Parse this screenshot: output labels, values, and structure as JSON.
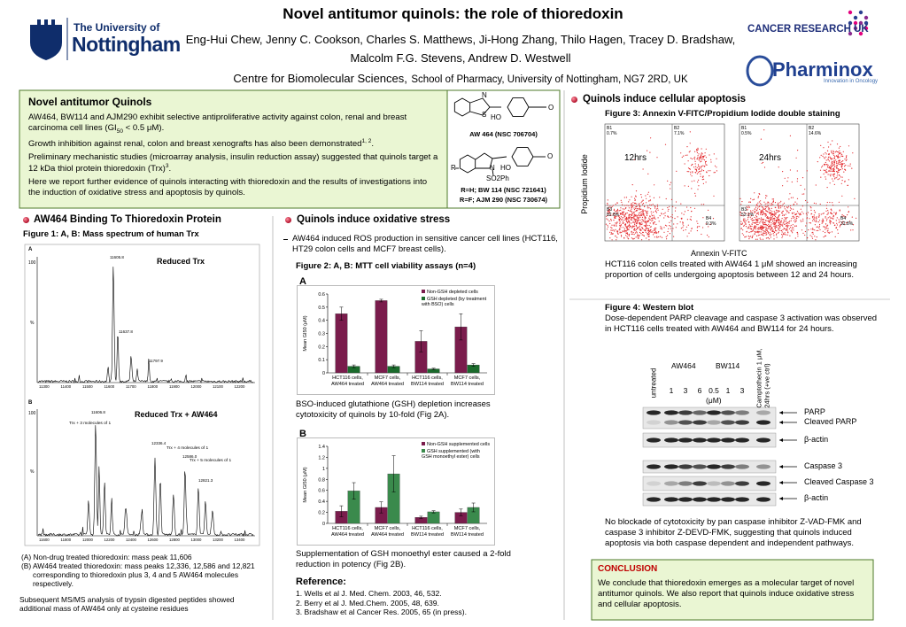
{
  "header": {
    "title": "Novel antitumor quinols: the role of thioredoxin",
    "authors": [
      "Eng-Hui Chew, Jenny C. Cookson, Charles S. Matthews, Ji-Hong Zhang, Thilo Hagen, Tracey D. Bradshaw,",
      "Malcolm F.G. Stevens, Andrew D. Westwell"
    ],
    "affiliation_main": "Centre for Biomolecular Sciences,",
    "affiliation_rest": "School of Pharmacy, University of Nottingham, NG7 2RD, UK"
  },
  "logos": {
    "university_prefix": "The University of",
    "university_name": "Nottingham",
    "cancer_research": "CANCER RESEARCH UK",
    "pharminox": "Pharminox",
    "pharminox_tagline": "Innovation in Oncology"
  },
  "intro": {
    "heading": "Novel antitumor Quinols",
    "p1": [
      "AW464, BW114 and AJM290 exhibit selective antiproliferative activity against colon, renal and breast carcinoma cell lines (GI",
      "50",
      " < 0.5 μM)."
    ],
    "p2": [
      "Growth inhibition against renal, colon and breast xenografts has also been demonstrated",
      "1, 2",
      "."
    ],
    "p3": [
      "Preliminary mechanistic studies (microarray analysis, insulin reduction assay) suggested that quinols target a 12 kDa thiol protein thioredoxin (Trx)",
      "3",
      "."
    ],
    "p4": "Here we report further evidence of quinols interacting with thioredoxin and the results of investigations into the induction of oxidative stress and apoptosis by quinols."
  },
  "structures": {
    "atoms_top": [
      "N",
      "S",
      "HO",
      "O"
    ],
    "name_top": "AW 464 (NSC 706704)",
    "atoms_bottom": [
      "R",
      "N",
      "HO",
      "O",
      "SO2Ph"
    ],
    "names_bottom": [
      "R=H; BW 114 (NSC 721641)",
      "R=F; AJM 290 (NSC 730674)"
    ]
  },
  "binding": {
    "heading": "AW464 Binding To Thioredoxin Protein",
    "figure_title": "Figure 1: A, B: Mass spectrum of human Trx",
    "panel_a": {
      "letter": "A",
      "label": "Reduced Trx",
      "y_top": "100",
      "y_mid": "%",
      "peaks": [
        "11605.8",
        "11637.8",
        "11797.9"
      ],
      "xticks": [
        "11300",
        "11400",
        "11500",
        "11600",
        "11700",
        "11800",
        "11900",
        "12000",
        "12100",
        "12200"
      ]
    },
    "panel_b": {
      "letter": "B",
      "label": "Reduced Trx + AW464",
      "y_top": "100",
      "y_mid": "%",
      "peaks": [
        "11606.8",
        "12336.4",
        "12586.0",
        "12821.3"
      ],
      "annotations": [
        "Trx + 3 molecules of 1",
        "Trx + 4 molecules of 1",
        "Trx + 5 molecules of 1"
      ],
      "xticks": [
        "11600",
        "11800",
        "12000",
        "12200",
        "12400",
        "12600",
        "12800",
        "13000",
        "13200",
        "13400"
      ]
    },
    "notes": [
      "(A)  Non-drug treated thioredoxin: mass peak 11,606",
      "(B)  AW464 treated thioredoxin: mass peaks 12,336, 12,586 and 12,821 corresponding to thioredoxin plus 3, 4 and 5 AW464 molecules respectively."
    ],
    "summary": "Subsequent MS/MS analysis of trypsin digested peptides showed additional mass of AW464 only at cysteine residues"
  },
  "oxidative": {
    "heading": "Quinols induce oxidative stress",
    "bullet": "AW464 induced ROS production in sensitive cancer cell lines (HCT116, HT29 colon cells and MCF7 breast cells).",
    "figure_title": "Figure 2: A, B: MTT cell viability assays (n=4)",
    "caption_a": "BSO-induced glutathione (GSH) depletion increases cytotoxicity of quinols by 10-fold (Fig 2A).",
    "caption_b": "Supplementation of GSH monoethyl ester caused a 2-fold reduction in potency (Fig 2B).",
    "reference_heading": "Reference:",
    "references": [
      "1.  Wells et al J. Med. Chem. 2003, 46, 532.",
      "2.  Berry et al J. Med.Chem. 2005, 48, 639.",
      "3.  Bradshaw et al Cancer Res. 2005, 65 (in press)."
    ]
  },
  "figure2": {
    "charts": [
      {
        "type": "bar",
        "panel": "A",
        "y_label": "Mean GI50 (μM)",
        "categories": [
          "HCT116 cells, AW464 treated",
          "MCF7 cells, AW464 treated",
          "HCT116 cells, BW114 treated",
          "MCF7 cells, BW114 treated"
        ],
        "series": [
          {
            "name": "Non-GSH depleted cells",
            "color": "#7a1c4c",
            "values": [
              0.45,
              0.55,
              0.24,
              0.35
            ],
            "errors": [
              0.05,
              0.01,
              0.08,
              0.1
            ]
          },
          {
            "name": "GSH depleted (by treatment with BSO) cells",
            "color": "#1b6b2c",
            "values": [
              0.05,
              0.05,
              0.03,
              0.06
            ],
            "errors": [
              0.01,
              0.01,
              0.005,
              0.01
            ]
          }
        ],
        "ylim": [
          0,
          0.6
        ],
        "yticks": [
          0,
          0.1,
          0.2,
          0.3,
          0.4,
          0.5,
          0.6
        ]
      },
      {
        "type": "bar",
        "panel": "B",
        "y_label": "Mean GI50 (μM)",
        "categories": [
          "HCT116 cells, AW464 treated",
          "MCF7 cells, AW464 treated",
          "HCT116 cells, BW114 treated",
          "MCF7 cells, BW114 treated"
        ],
        "series": [
          {
            "name": "Non-GSH supplemented cells",
            "color": "#7a1c4c",
            "values": [
              0.22,
              0.29,
              0.11,
              0.2
            ],
            "errors": [
              0.1,
              0.1,
              0.02,
              0.06
            ]
          },
          {
            "name": "GSH supplemented (with GSH monoethyl ester) cells",
            "color": "#3a8a4c",
            "values": [
              0.59,
              0.9,
              0.21,
              0.29
            ],
            "errors": [
              0.15,
              0.33,
              0.02,
              0.08
            ]
          }
        ],
        "ylim": [
          0,
          1.4
        ],
        "yticks": [
          0,
          0.2,
          0.4,
          0.6,
          0.8,
          1,
          1.2,
          1.4
        ]
      }
    ]
  },
  "apoptosis": {
    "heading": "Quinols induce cellular apoptosis",
    "figure_title": "Figure 3: Annexin V-FITC/Propidium Iodide double staining",
    "y_axis": "Propidium Iodide",
    "x_axis": "Annexin V-FITC",
    "panels": [
      {
        "label": "12hrs",
        "quadrants": [
          {
            "name": "B1",
            "value": "0.7%"
          },
          {
            "name": "B2",
            "value": "7.1%"
          },
          {
            "name": "B3",
            "value": "82.8%"
          },
          {
            "name": "B4",
            "value": "9.3%"
          }
        ]
      },
      {
        "label": "24hrs",
        "quadrants": [
          {
            "name": "B1",
            "value": "0.5%"
          },
          {
            "name": "B2",
            "value": "14.6%"
          },
          {
            "name": "B3",
            "value": "52.1%"
          },
          {
            "name": "B4",
            "value": "32.8%"
          }
        ]
      }
    ],
    "caption": "HCT116 colon cells treated with AW464 1 μM showed an increasing proportion of cells undergoing apoptosis between 12 and 24 hours."
  },
  "western": {
    "figure_title": "Figure 4: Western blot",
    "text": "Dose-dependent PARP cleavage and caspase 3 activation was observed in HCT116 cells treated with AW464 and BW114 for 24 hours.",
    "lane_untreated": "untreated",
    "groups": [
      "AW464",
      "BW114"
    ],
    "doses": [
      "1",
      "3",
      "6",
      "0.5",
      "1",
      "3"
    ],
    "unit": "(μM)",
    "control": [
      "Camptothecin 1 μM,",
      "24hrs (+ve ctrl)"
    ],
    "bands": [
      "PARP",
      "Cleaved PARP",
      "β-actin",
      "Caspase 3",
      "Cleaved Caspase 3",
      "β-actin"
    ],
    "conclusion_text": "No blockade of cytotoxicity by pan caspase inhibitor Z-VAD-FMK and caspase 3 inhibitor Z-DEVD-FMK, suggesting that quinols induced apoptosis via both caspase dependent and independent pathways."
  },
  "conclusion": {
    "heading": "CONCLUSION",
    "text": "We conclude that thioredoxin emerges as a molecular target of novel antitumor quinols. We also report that quinols induce oxidative stress and cellular apoptosis."
  }
}
